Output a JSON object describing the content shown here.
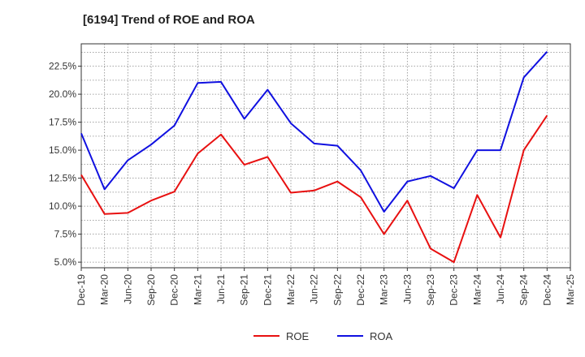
{
  "chart_data": {
    "type": "line",
    "title": "[6194]  Trend of ROE and ROA",
    "xlabel": "",
    "ylabel": "",
    "categories": [
      "Dec-19",
      "Mar-20",
      "Jun-20",
      "Sep-20",
      "Dec-20",
      "Mar-21",
      "Jun-21",
      "Sep-21",
      "Dec-21",
      "Mar-22",
      "Jun-22",
      "Sep-22",
      "Dec-22",
      "Mar-23",
      "Jun-23",
      "Sep-23",
      "Dec-23",
      "Mar-24",
      "Jun-24",
      "Sep-24",
      "Dec-24",
      "Mar-25"
    ],
    "series": [
      {
        "name": "ROE",
        "color": "#e81010",
        "values": [
          12.8,
          9.3,
          9.4,
          10.5,
          11.3,
          14.7,
          16.4,
          13.7,
          14.4,
          11.2,
          11.4,
          12.2,
          10.8,
          7.5,
          10.5,
          6.2,
          5.0,
          11.0,
          7.2,
          15.0,
          18.1,
          null
        ]
      },
      {
        "name": "ROA",
        "color": "#1010e0",
        "values": [
          16.5,
          11.5,
          14.1,
          15.5,
          17.2,
          21.0,
          21.1,
          17.8,
          20.4,
          17.4,
          15.6,
          15.4,
          13.2,
          9.5,
          12.2,
          12.7,
          11.6,
          15.0,
          15.0,
          21.5,
          23.8,
          null
        ]
      }
    ],
    "y_ticks": [
      "5.0%",
      "7.5%",
      "10.0%",
      "12.5%",
      "15.0%",
      "17.5%",
      "20.0%",
      "22.5%"
    ],
    "y_tick_values": [
      5.0,
      7.5,
      10.0,
      12.5,
      15.0,
      17.5,
      20.0,
      22.5
    ],
    "ylim": [
      4.5,
      24.5
    ],
    "grid": true,
    "legend_position": "bottom-center"
  }
}
